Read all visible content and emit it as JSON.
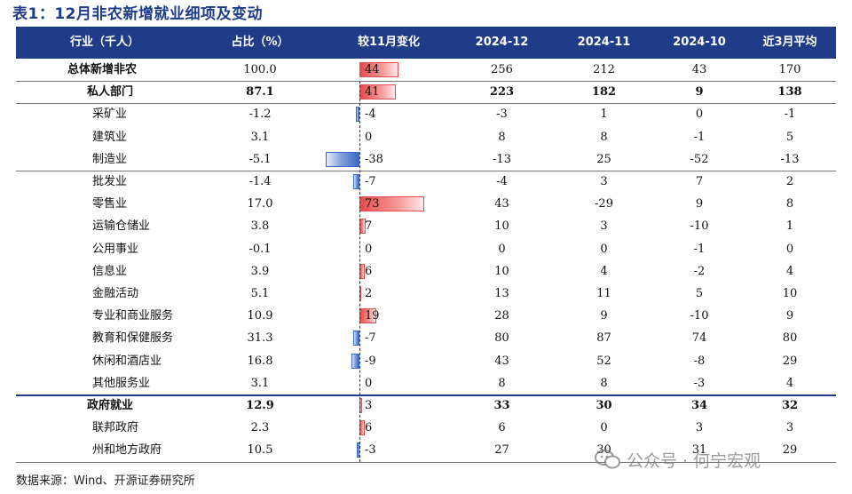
{
  "title": "表1：12月非农新增就业细项及变动",
  "columns": [
    "行业（千人）",
    "占比（%）",
    "较11月变化",
    "2024-12",
    "2024-11",
    "2024-10",
    "近3月平均"
  ],
  "rows": [
    {
      "cat": "总体新增非农",
      "share": "100.0",
      "chg": 44,
      "d12": "256",
      "d11": "212",
      "d10": "43",
      "avg": "170",
      "style": "total"
    },
    {
      "cat": "私人部门",
      "share": "87.1",
      "chg": 41,
      "d12": "223",
      "d11": "182",
      "d10": "9",
      "avg": "138",
      "style": "bold"
    },
    {
      "cat": "采矿业",
      "share": "-1.2",
      "chg": -4,
      "d12": "-3",
      "d11": "1",
      "d10": "0",
      "avg": "-1",
      "style": "sub"
    },
    {
      "cat": "建筑业",
      "share": "3.1",
      "chg": 0,
      "d12": "8",
      "d11": "8",
      "d10": "-1",
      "avg": "5",
      "style": "sub"
    },
    {
      "cat": "制造业",
      "share": "-5.1",
      "chg": -38,
      "d12": "-13",
      "d11": "25",
      "d10": "-52",
      "avg": "-13",
      "style": "sub"
    },
    {
      "cat": "批发业",
      "share": "-1.4",
      "chg": -7,
      "d12": "-4",
      "d11": "3",
      "d10": "7",
      "avg": "2",
      "style": "sub"
    },
    {
      "cat": "零售业",
      "share": "17.0",
      "chg": 73,
      "d12": "43",
      "d11": "-29",
      "d10": "9",
      "avg": "8",
      "style": "sub"
    },
    {
      "cat": "运输仓储业",
      "share": "3.8",
      "chg": 7,
      "d12": "10",
      "d11": "3",
      "d10": "-10",
      "avg": "1",
      "style": "sub"
    },
    {
      "cat": "公用事业",
      "share": "-0.1",
      "chg": 0,
      "d12": "0",
      "d11": "0",
      "d10": "-1",
      "avg": "0",
      "style": "sub"
    },
    {
      "cat": "信息业",
      "share": "3.9",
      "chg": 6,
      "d12": "10",
      "d11": "4",
      "d10": "-2",
      "avg": "4",
      "style": "sub"
    },
    {
      "cat": "金融活动",
      "share": "5.1",
      "chg": 2,
      "d12": "13",
      "d11": "11",
      "d10": "5",
      "avg": "10",
      "style": "sub"
    },
    {
      "cat": "专业和商业服务",
      "share": "10.9",
      "chg": 19,
      "d12": "28",
      "d11": "9",
      "d10": "-10",
      "avg": "9",
      "style": "sub"
    },
    {
      "cat": "教育和保健服务",
      "share": "31.3",
      "chg": -7,
      "d12": "80",
      "d11": "87",
      "d10": "74",
      "avg": "80",
      "style": "sub"
    },
    {
      "cat": "休闲和酒店业",
      "share": "16.8",
      "chg": -9,
      "d12": "43",
      "d11": "52",
      "d10": "-8",
      "avg": "29",
      "style": "sub"
    },
    {
      "cat": "其他服务业",
      "share": "3.1",
      "chg": 0,
      "d12": "8",
      "d11": "8",
      "d10": "-3",
      "avg": "4",
      "style": "sub"
    },
    {
      "cat": "政府就业",
      "share": "12.9",
      "chg": 3,
      "d12": "33",
      "d11": "30",
      "d10": "34",
      "avg": "32",
      "style": "bold"
    },
    {
      "cat": "联邦政府",
      "share": "2.3",
      "chg": 6,
      "d12": "6",
      "d11": "0",
      "d10": "3",
      "avg": "3",
      "style": "sub"
    },
    {
      "cat": "州和地方政府",
      "share": "10.5",
      "chg": -3,
      "d12": "27",
      "d11": "30",
      "d10": "31",
      "avg": "29",
      "style": "sub"
    }
  ],
  "source": "数据来源：Wind、开源证券研究所",
  "watermark": "公众号 · 何宁宏观",
  "colors": {
    "header": "#1f3c88",
    "positive_bar": "#e84a4a",
    "negative_bar": "#3a66c4"
  }
}
